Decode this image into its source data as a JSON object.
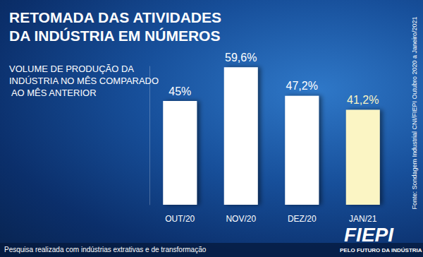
{
  "chart_data": {
    "type": "bar",
    "title": "RETOMADA DAS ATIVIDADES DA INDÚSTRIA EM NÚMEROS",
    "subtitle": "VOLUME DE PRODUÇÃO DA INDÚSTRIA NO MÊS COMPARADO AO MÊS ANTERIOR",
    "categories": [
      "OUT/20",
      "NOV/20",
      "DEZ/20",
      "JAN/21"
    ],
    "values": [
      45,
      59.6,
      47.2,
      41.2
    ],
    "value_labels": [
      "45%",
      "59,6%",
      "47,2%",
      "41,2%"
    ],
    "colors": [
      "#ffffff",
      "#ffffff",
      "#ffffff",
      "#fbf5c4"
    ],
    "ylim": [
      0,
      60
    ],
    "data_labels": true,
    "tick_labels": "x",
    "grid": false,
    "source": "Fonte: Sondagem Industrial CNI/FIEPI Outubro 2020 a Janeiro/2021",
    "note": "Pesquisa realizada com indústrias extrativas e de transformação",
    "logo": "FIEPI",
    "logo_tagline": "PELO FUTURO DA INDÚSTRIA"
  }
}
